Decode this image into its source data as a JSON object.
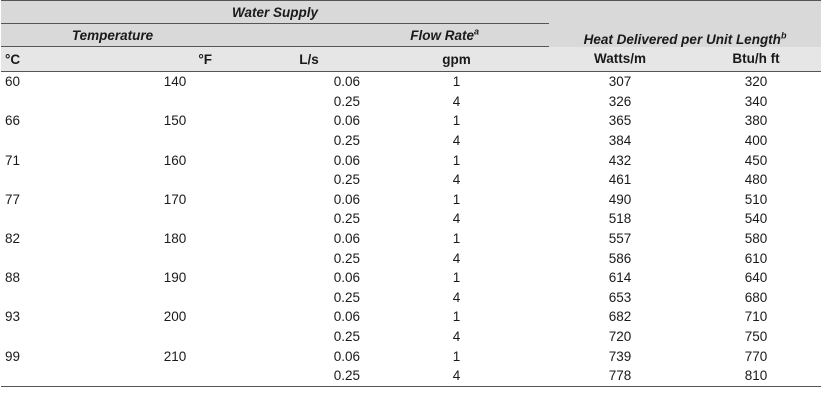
{
  "header": {
    "water_supply": "Water Supply",
    "temperature": "Temperature",
    "flow_rate": "Flow Rate",
    "flow_rate_note": "a",
    "heat_delivered": "Heat Delivered per Unit Length",
    "heat_delivered_note": "b",
    "units": {
      "celsius": "°C",
      "fahrenheit": "°F",
      "ls": "L/s",
      "gpm": "gpm",
      "watts": "Watts/m",
      "btu": "Btu/h ft"
    }
  },
  "rows": [
    {
      "c": "60",
      "f": "140",
      "ls": "0.06",
      "gpm": "1",
      "w": "307",
      "b": "320"
    },
    {
      "c": "",
      "f": "",
      "ls": "0.25",
      "gpm": "4",
      "w": "326",
      "b": "340"
    },
    {
      "c": "66",
      "f": "150",
      "ls": "0.06",
      "gpm": "1",
      "w": "365",
      "b": "380"
    },
    {
      "c": "",
      "f": "",
      "ls": "0.25",
      "gpm": "4",
      "w": "384",
      "b": "400"
    },
    {
      "c": "71",
      "f": "160",
      "ls": "0.06",
      "gpm": "1",
      "w": "432",
      "b": "450"
    },
    {
      "c": "",
      "f": "",
      "ls": "0.25",
      "gpm": "4",
      "w": "461",
      "b": "480"
    },
    {
      "c": "77",
      "f": "170",
      "ls": "0.06",
      "gpm": "1",
      "w": "490",
      "b": "510"
    },
    {
      "c": "",
      "f": "",
      "ls": "0.25",
      "gpm": "4",
      "w": "518",
      "b": "540"
    },
    {
      "c": "82",
      "f": "180",
      "ls": "0.06",
      "gpm": "1",
      "w": "557",
      "b": "580"
    },
    {
      "c": "",
      "f": "",
      "ls": "0.25",
      "gpm": "4",
      "w": "586",
      "b": "610"
    },
    {
      "c": "88",
      "f": "190",
      "ls": "0.06",
      "gpm": "1",
      "w": "614",
      "b": "640"
    },
    {
      "c": "",
      "f": "",
      "ls": "0.25",
      "gpm": "4",
      "w": "653",
      "b": "680"
    },
    {
      "c": "93",
      "f": "200",
      "ls": "0.06",
      "gpm": "1",
      "w": "682",
      "b": "710"
    },
    {
      "c": "",
      "f": "",
      "ls": "0.25",
      "gpm": "4",
      "w": "720",
      "b": "750"
    },
    {
      "c": "99",
      "f": "210",
      "ls": "0.06",
      "gpm": "1",
      "w": "739",
      "b": "770"
    },
    {
      "c": "",
      "f": "",
      "ls": "0.25",
      "gpm": "4",
      "w": "778",
      "b": "810"
    }
  ]
}
